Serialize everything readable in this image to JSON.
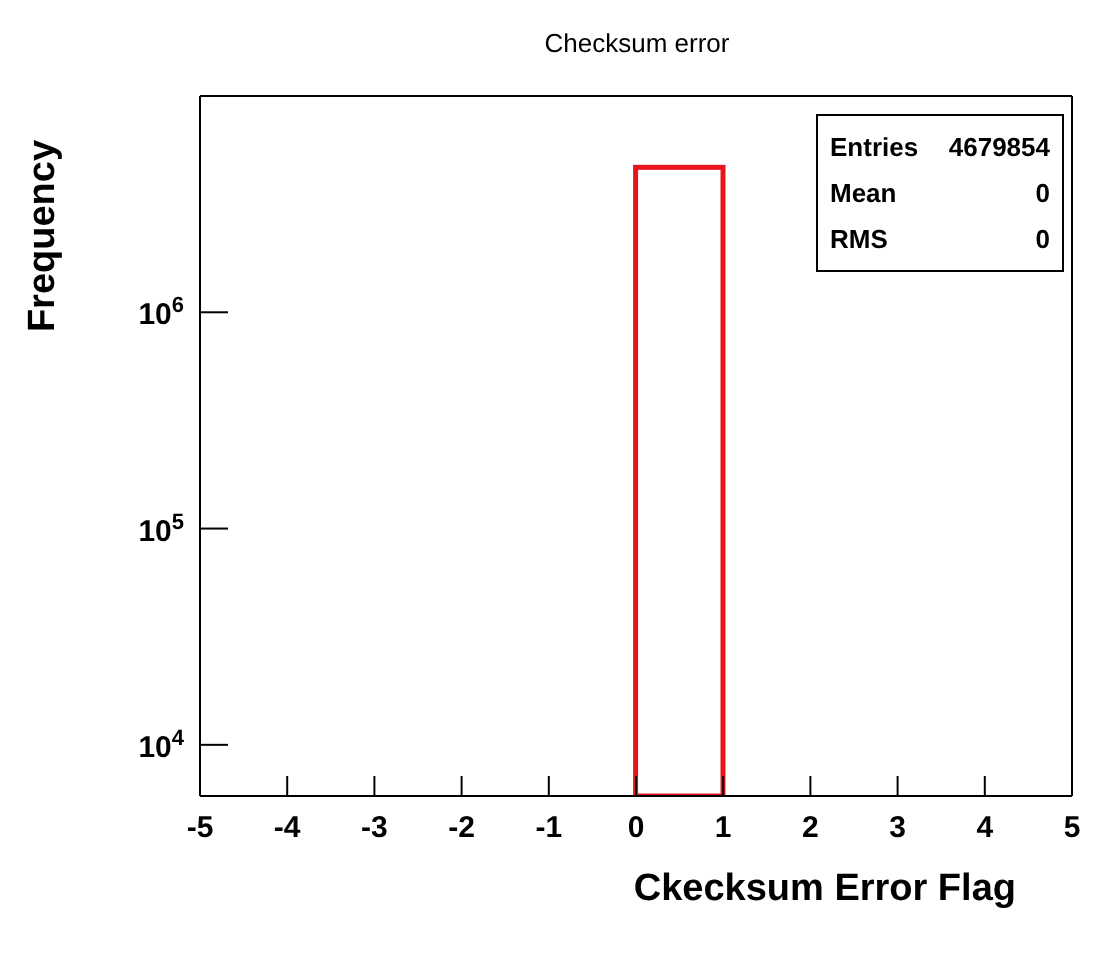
{
  "chart_data": {
    "type": "histogram",
    "title": "Checksum error",
    "xlabel": "Ckecksum Error Flag",
    "ylabel": "Frequency",
    "bins": [
      0,
      1
    ],
    "values": [
      4679854
    ],
    "color": "#e8141c",
    "xlim": [
      -5,
      5
    ],
    "xticks": [
      -5,
      -4,
      -3,
      -2,
      -1,
      0,
      1,
      2,
      3,
      4,
      5
    ],
    "ylim": [
      5800,
      10000000
    ],
    "yticks": [
      {
        "value": 10000,
        "label": "10$^{4}$"
      },
      {
        "value": 100000,
        "label": "10$^{5}$"
      },
      {
        "value": 1000000,
        "label": "10$^{6}$"
      }
    ],
    "log": true,
    "annotations": [
      "Entries 4679854",
      "Mean 0",
      "RMS 0"
    ]
  }
}
